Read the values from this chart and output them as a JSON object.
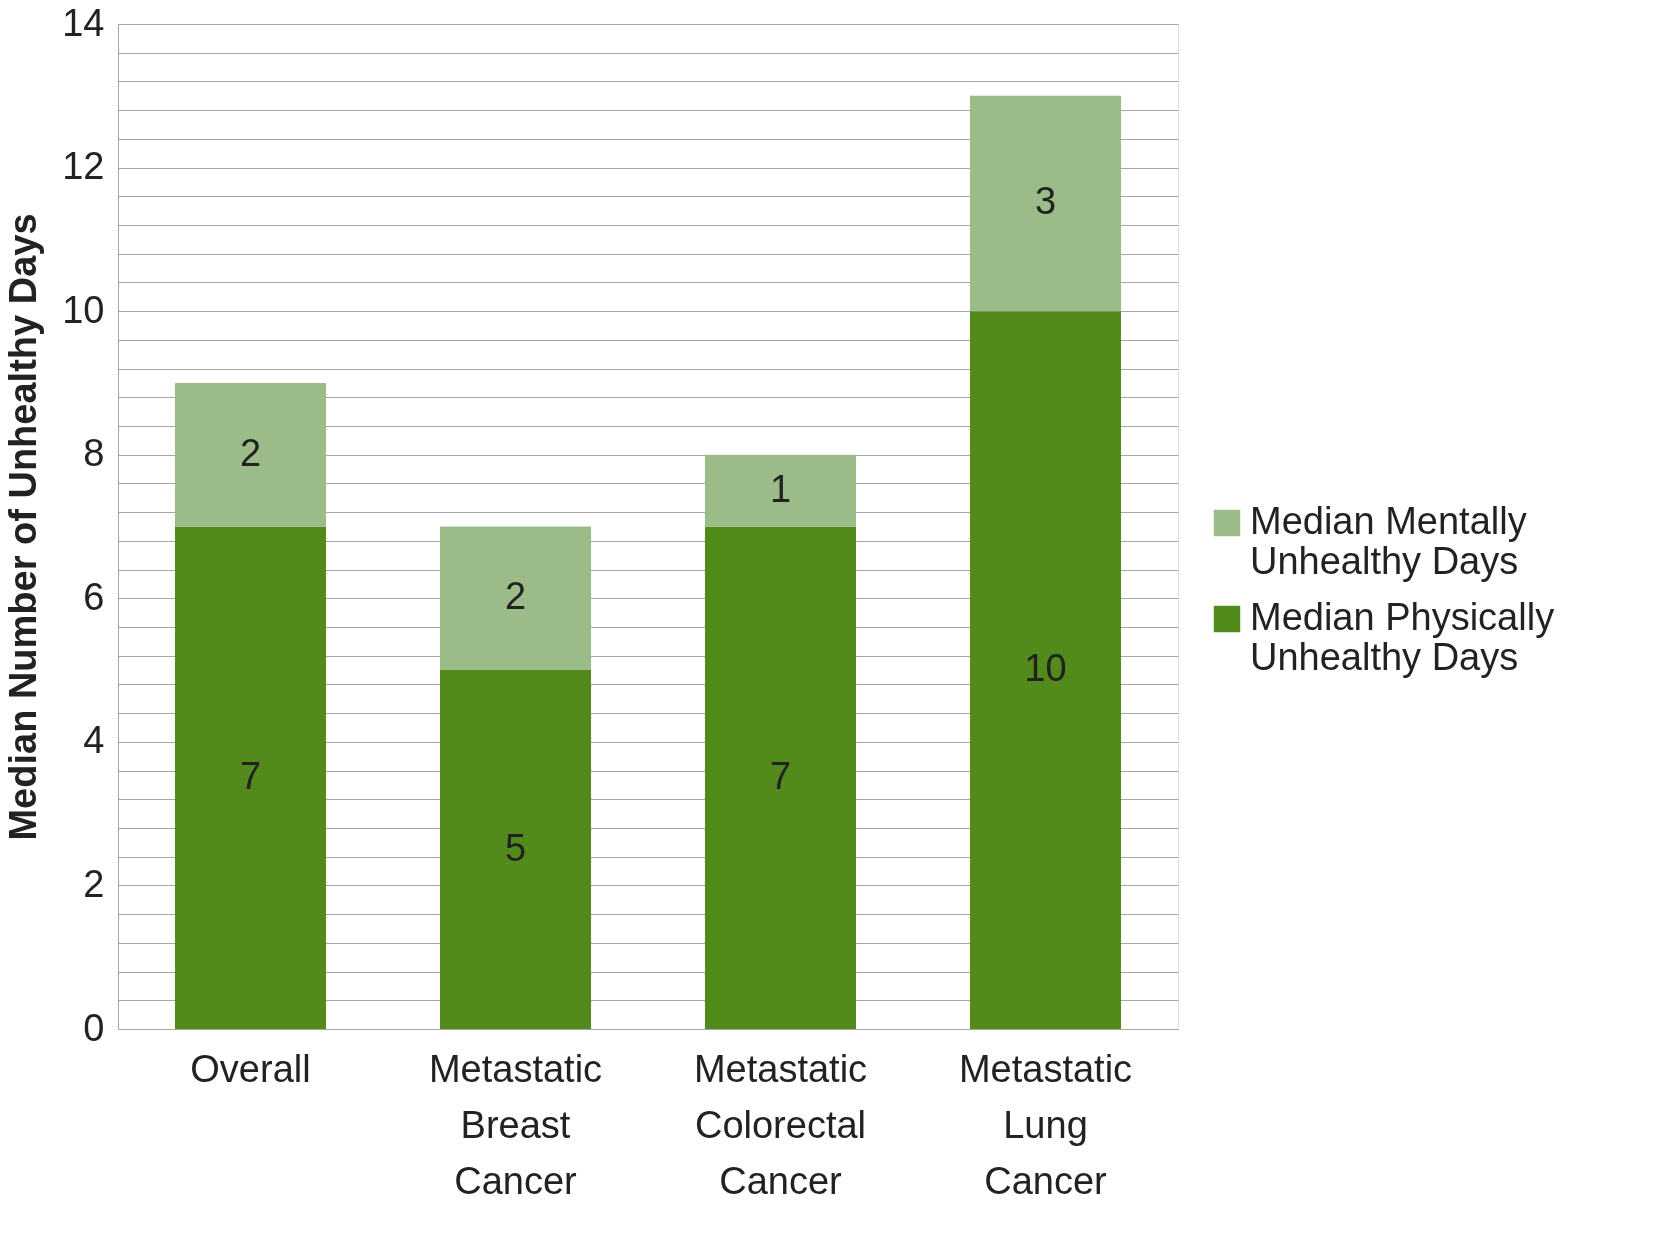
{
  "chart_data": {
    "type": "bar",
    "stacked": true,
    "ylabel": "Median Number of Unhealthy Days",
    "categories": [
      "Overall",
      "Metastatic Breast Cancer",
      "Metastatic Colorectal Cancer",
      "Metastatic Lung Cancer"
    ],
    "series": [
      {
        "name": "Median Physically Unhealthy Days",
        "color": "#538a1c",
        "values": [
          7,
          5,
          7,
          10
        ]
      },
      {
        "name": "Median Mentally Unhealthy Days",
        "color": "#9bbb88",
        "values": [
          2,
          2,
          1,
          3
        ]
      }
    ],
    "ylim": [
      0,
      14
    ],
    "yticks": [
      0,
      {
        "value": 0.4,
        "label": null
      },
      {
        "value": 0.8,
        "label": null
      },
      {
        "value": 1.2,
        "label": null
      },
      {
        "value": 1.6,
        "label": null
      },
      2,
      {
        "value": 2.4,
        "label": null
      },
      {
        "value": 2.8,
        "label": null
      },
      {
        "value": 3.2,
        "label": null
      },
      {
        "value": 3.6,
        "label": null
      },
      4,
      {
        "value": 4.4,
        "label": null
      },
      {
        "value": 4.8,
        "label": null
      },
      {
        "value": 5.2,
        "label": null
      },
      {
        "value": 5.6,
        "label": null
      },
      6,
      {
        "value": 6.4,
        "label": null
      },
      {
        "value": 6.8,
        "label": null
      },
      {
        "value": 7.2,
        "label": null
      },
      {
        "value": 7.6,
        "label": null
      },
      8,
      {
        "value": 8.4,
        "label": null
      },
      {
        "value": 8.8,
        "label": null
      },
      {
        "value": 9.2,
        "label": null
      },
      {
        "value": 9.6,
        "label": null
      },
      10,
      {
        "value": 10.4,
        "label": null
      },
      {
        "value": 10.8,
        "label": null
      },
      {
        "value": 11.2,
        "label": null
      },
      {
        "value": 11.6,
        "label": null
      },
      12,
      {
        "value": 12.4,
        "label": null
      },
      {
        "value": 12.8,
        "label": null
      },
      {
        "value": 13.2,
        "label": null
      },
      {
        "value": 13.6,
        "label": null
      },
      14
    ],
    "grid": true,
    "legend": "right",
    "data_labels": true
  }
}
